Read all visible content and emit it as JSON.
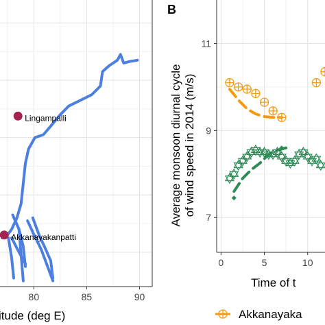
{
  "chart_data": [
    {
      "panel": "A",
      "type": "line",
      "xlabel": "itude (deg E)",
      "xticks": [
        "80",
        "85",
        "90"
      ],
      "xlim": [
        76.8,
        91.2
      ],
      "ylim": [
        0,
        1
      ],
      "colors": {
        "river": "#4d7fe0",
        "site": "#a3254f"
      },
      "sites": [
        {
          "name": "Lingampalli",
          "x": 78.5,
          "y": 0.595
        },
        {
          "name": "Akkanayakanpatti",
          "x": 77.2,
          "y": 0.18
        }
      ],
      "river_lines": [
        [
          [
            77.0,
            0.17
          ],
          [
            77.4,
            0.175
          ],
          [
            77.9,
            0.2
          ],
          [
            78.4,
            0.24
          ],
          [
            78.8,
            0.29
          ],
          [
            79.0,
            0.36
          ],
          [
            79.2,
            0.43
          ],
          [
            79.5,
            0.48
          ],
          [
            80.1,
            0.52
          ],
          [
            80.9,
            0.53
          ],
          [
            81.6,
            0.56
          ],
          [
            82.5,
            0.6
          ],
          [
            83.3,
            0.63
          ],
          [
            84.4,
            0.65
          ],
          [
            85.5,
            0.67
          ],
          [
            86.3,
            0.7
          ],
          [
            86.5,
            0.75
          ],
          [
            87.1,
            0.77
          ],
          [
            87.9,
            0.79
          ],
          [
            88.2,
            0.81
          ],
          [
            88.5,
            0.78
          ],
          [
            89.0,
            0.785
          ],
          [
            89.8,
            0.79
          ]
        ],
        [
          [
            77.6,
            0.17
          ],
          [
            77.9,
            0.1
          ],
          [
            78.1,
            0.03
          ]
        ],
        [
          [
            79.9,
            0.24
          ],
          [
            80.5,
            0.18
          ],
          [
            81.0,
            0.14
          ],
          [
            81.6,
            0.09
          ],
          [
            81.8,
            0.03
          ]
        ],
        [
          [
            79.4,
            0.23
          ],
          [
            79.9,
            0.19
          ],
          [
            80.7,
            0.13
          ],
          [
            81.3,
            0.07
          ],
          [
            81.8,
            0.02
          ]
        ],
        [
          [
            78.0,
            0.25
          ],
          [
            78.6,
            0.2
          ],
          [
            79.0,
            0.14
          ],
          [
            79.2,
            0.07
          ]
        ],
        [
          [
            77.9,
            0.17
          ],
          [
            78.6,
            0.12
          ],
          [
            79.2,
            0.08
          ]
        ],
        [
          [
            78.6,
            0.2
          ],
          [
            79.0,
            0.02
          ]
        ]
      ]
    },
    {
      "panel": "B",
      "type": "line",
      "ylabel": "Average monsoon diurnal cycle\nof wind speed in 2014 (m/s)",
      "xlabel": "Time of t",
      "xticks": [
        "0",
        "5",
        "10"
      ],
      "yticks": [
        "7",
        "9",
        "11"
      ],
      "xlim": [
        -0.5,
        12.0
      ],
      "ylim": [
        6.2,
        12.0
      ],
      "series": [
        {
          "name": "Akkanayaka",
          "color": "#f39c12",
          "observed_x": [
            1,
            2,
            3,
            4,
            5,
            6,
            7,
            11,
            12
          ],
          "observed_y": [
            10.1,
            10.0,
            9.95,
            9.85,
            9.65,
            9.45,
            9.3,
            10.1,
            10.35
          ],
          "fit_x": [
            1,
            2,
            3,
            4,
            5,
            6,
            7
          ],
          "fit_y": [
            9.95,
            9.7,
            9.5,
            9.38,
            9.32,
            9.3,
            9.3
          ]
        },
        {
          "name": "",
          "color": "#2e8b57",
          "observed_x": [
            1,
            1.5,
            2,
            2.5,
            3,
            3.5,
            4,
            4.5,
            5,
            5.5,
            6,
            6.5,
            7,
            7.5,
            8,
            8.5,
            9,
            9.5,
            10,
            10.5,
            11,
            11.5
          ],
          "observed_y": [
            7.9,
            8.0,
            8.2,
            8.3,
            8.4,
            8.5,
            8.55,
            8.5,
            8.5,
            8.45,
            8.45,
            8.5,
            8.4,
            8.3,
            8.25,
            8.3,
            8.45,
            8.5,
            8.4,
            8.3,
            8.35,
            8.2
          ],
          "fit_x": [
            1.5,
            2.5,
            3.5,
            4.5,
            5.5,
            6.5,
            7.5
          ],
          "fit_y": [
            7.6,
            7.9,
            8.1,
            8.25,
            8.45,
            8.55,
            8.6
          ],
          "dots_x": [
            1.5,
            7.0
          ],
          "dots_y": [
            7.45,
            8.6
          ]
        }
      ]
    }
  ]
}
